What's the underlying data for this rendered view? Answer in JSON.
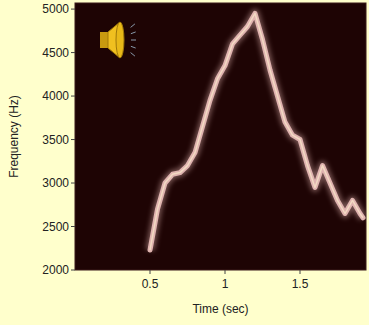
{
  "chart_data": {
    "type": "line",
    "x_label": "Time (sec)",
    "y_label": "Frequency (Hz)",
    "x": [
      0.5,
      0.55,
      0.6,
      0.65,
      0.7,
      0.75,
      0.8,
      0.85,
      0.9,
      0.95,
      1.0,
      1.05,
      1.1,
      1.15,
      1.2,
      1.25,
      1.3,
      1.35,
      1.4,
      1.45,
      1.5,
      1.55,
      1.6,
      1.65,
      1.7,
      1.75,
      1.8,
      1.85,
      1.9,
      1.92
    ],
    "series": [
      {
        "name": "Frequency",
        "color": "#e0b4b0",
        "values": [
          2230,
          2700,
          3000,
          3100,
          3120,
          3200,
          3350,
          3650,
          3950,
          4200,
          4350,
          4600,
          4700,
          4800,
          4950,
          4650,
          4300,
          4000,
          3700,
          3550,
          3500,
          3200,
          2950,
          3200,
          3000,
          2800,
          2650,
          2800,
          2650,
          2600
        ]
      }
    ],
    "xlim": [
      0,
      1.94
    ],
    "xticks": [
      0.5,
      1,
      1.5
    ],
    "ylim": [
      2000,
      5070
    ],
    "yticks": [
      2000,
      2500,
      3000,
      3500,
      4000,
      4500,
      5000
    ],
    "grid": false
  }
}
